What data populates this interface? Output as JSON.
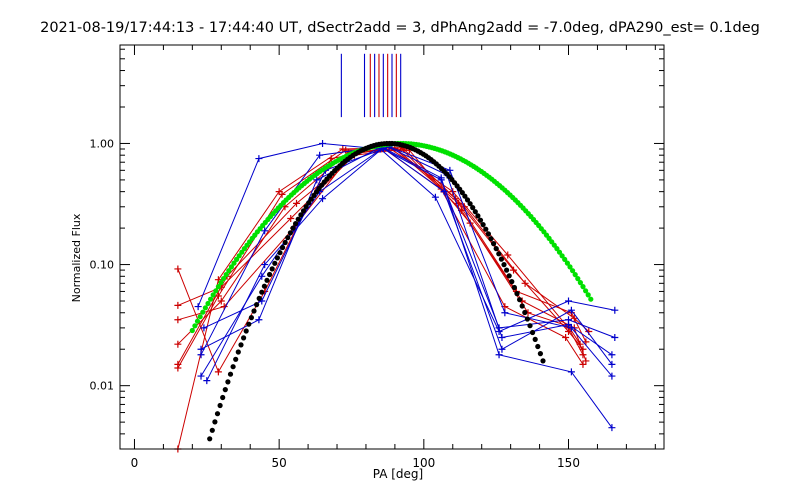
{
  "chart_data": {
    "type": "line",
    "title": "2021-08-19/17:44:13 - 17:44:40 UT, dSectr2add = 3, dPhAng2add = -7.0deg, dPA290_est=  0.1deg",
    "xlabel": "PA [deg]",
    "ylabel": "Normalized Flux",
    "xlim": [
      -5,
      183
    ],
    "ylim": [
      0.003,
      6.5
    ],
    "yscale": "log",
    "grid": false,
    "x_ticks": [
      0,
      50,
      100,
      150
    ],
    "x_tick_labels": [
      "0",
      "50",
      "100",
      "150"
    ],
    "y_ticks": [
      0.01,
      0.1,
      1.0
    ],
    "y_tick_labels": [
      "0.01",
      "0.10",
      "1.00"
    ],
    "colors": {
      "red_series": "#cc0000",
      "blue_series": "#0000cc",
      "green_fit": "#00e000",
      "black_fit": "#000000",
      "marker_red": "#cc0000",
      "marker_blue": "#0000cc"
    },
    "vertical_markers": [
      {
        "x": 71.5,
        "color": "blue"
      },
      {
        "x": 79.5,
        "color": "blue"
      },
      {
        "x": 81.5,
        "color": "red"
      },
      {
        "x": 83.0,
        "color": "blue"
      },
      {
        "x": 84.5,
        "color": "red"
      },
      {
        "x": 86.0,
        "color": "blue"
      },
      {
        "x": 87.5,
        "color": "red"
      },
      {
        "x": 89.0,
        "color": "blue"
      },
      {
        "x": 90.5,
        "color": "red"
      },
      {
        "x": 92.0,
        "color": "blue"
      }
    ],
    "vertical_marker_range": [
      1.65,
      5.5
    ],
    "series": [
      {
        "color": "red",
        "points": [
          [
            15,
            0.003
          ],
          [
            29,
            0.075
          ],
          [
            50,
            0.4
          ],
          [
            72,
            0.9
          ],
          [
            88,
            0.92
          ],
          [
            110,
            0.4
          ],
          [
            129,
            0.12
          ],
          [
            150,
            0.03
          ],
          [
            155,
            0.018
          ]
        ]
      },
      {
        "color": "red",
        "points": [
          [
            15,
            0.014
          ],
          [
            29,
            0.055
          ],
          [
            51,
            0.38
          ],
          [
            73,
            0.88
          ],
          [
            90,
            0.92
          ],
          [
            111,
            0.35
          ],
          [
            131,
            0.09
          ],
          [
            150,
            0.028
          ],
          [
            155,
            0.02
          ]
        ]
      },
      {
        "color": "red",
        "points": [
          [
            15,
            0.022
          ],
          [
            30,
            0.05
          ],
          [
            52,
            0.3
          ],
          [
            74,
            0.85
          ],
          [
            90,
            0.9
          ],
          [
            112,
            0.32
          ],
          [
            132,
            0.06
          ],
          [
            151,
            0.04
          ],
          [
            156,
            0.023
          ]
        ]
      },
      {
        "color": "red",
        "points": [
          [
            15,
            0.035
          ],
          [
            31,
            0.045
          ],
          [
            55,
            0.2
          ],
          [
            75,
            0.82
          ],
          [
            92,
            0.92
          ],
          [
            113,
            0.28
          ],
          [
            134,
            0.05
          ],
          [
            152,
            0.03
          ],
          [
            156,
            0.016
          ]
        ]
      },
      {
        "color": "red",
        "points": [
          [
            15,
            0.046
          ],
          [
            30,
            0.065
          ],
          [
            54,
            0.24
          ],
          [
            76,
            0.8
          ],
          [
            93,
            0.9
          ],
          [
            114,
            0.3
          ],
          [
            135,
            0.07
          ],
          [
            152,
            0.036
          ],
          [
            157,
            0.028
          ]
        ]
      },
      {
        "color": "red",
        "points": [
          [
            15,
            0.092
          ],
          [
            29,
            0.013
          ],
          [
            45,
            0.06
          ],
          [
            68,
            0.75
          ],
          [
            86,
            0.91
          ],
          [
            106,
            0.42
          ],
          [
            128,
            0.045
          ],
          [
            149,
            0.025
          ],
          [
            155,
            0.015
          ]
        ]
      },
      {
        "color": "red",
        "points": [
          [
            15,
            0.015
          ],
          [
            32,
            0.08
          ],
          [
            56,
            0.32
          ],
          [
            78,
            0.86
          ],
          [
            95,
            0.88
          ],
          [
            116,
            0.22
          ],
          [
            136,
            0.04
          ],
          [
            150,
            0.031
          ],
          [
            154,
            0.022
          ]
        ]
      },
      {
        "color": "blue",
        "points": [
          [
            22,
            0.045
          ],
          [
            43,
            0.75
          ],
          [
            65,
            1.0
          ],
          [
            85,
            0.9
          ],
          [
            104,
            0.36
          ],
          [
            126,
            0.028
          ],
          [
            150,
            0.05
          ],
          [
            166,
            0.042
          ]
        ]
      },
      {
        "color": "blue",
        "points": [
          [
            23,
            0.02
          ],
          [
            43,
            0.035
          ],
          [
            63,
            0.5
          ],
          [
            85,
            0.93
          ],
          [
            106,
            0.5
          ],
          [
            126,
            0.03
          ],
          [
            150,
            0.035
          ],
          [
            166,
            0.025
          ]
        ]
      },
      {
        "color": "blue",
        "points": [
          [
            23,
            0.012
          ],
          [
            44,
            0.08
          ],
          [
            64,
            0.4
          ],
          [
            86,
            0.92
          ],
          [
            107,
            0.4
          ],
          [
            127,
            0.02
          ],
          [
            151,
            0.042
          ],
          [
            165,
            0.015
          ]
        ]
      },
      {
        "color": "blue",
        "points": [
          [
            23,
            0.018
          ],
          [
            45,
            0.19
          ],
          [
            64,
            0.8
          ],
          [
            87,
            0.95
          ],
          [
            108,
            0.55
          ],
          [
            127,
            0.025
          ],
          [
            150,
            0.032
          ],
          [
            165,
            0.018
          ]
        ]
      },
      {
        "color": "blue",
        "points": [
          [
            24,
            0.03
          ],
          [
            44,
            0.05
          ],
          [
            66,
            0.6
          ],
          [
            88,
            0.94
          ],
          [
            109,
            0.6
          ],
          [
            128,
            0.04
          ],
          [
            151,
            0.03
          ],
          [
            165,
            0.012
          ]
        ]
      },
      {
        "color": "blue",
        "points": [
          [
            25,
            0.011
          ],
          [
            45,
            0.1
          ],
          [
            65,
            0.35
          ],
          [
            86,
            0.92
          ],
          [
            106,
            0.52
          ],
          [
            126,
            0.018
          ],
          [
            151,
            0.013
          ],
          [
            165,
            0.0045
          ]
        ]
      }
    ],
    "fits": [
      {
        "color": "green",
        "center": 92,
        "sigma": 27,
        "peak": 1.0,
        "x_range": [
          20,
          158
        ]
      },
      {
        "color": "black",
        "center": 88,
        "sigma": 18.5,
        "peak": 1.0,
        "x_range": [
          26,
          142
        ]
      }
    ]
  }
}
